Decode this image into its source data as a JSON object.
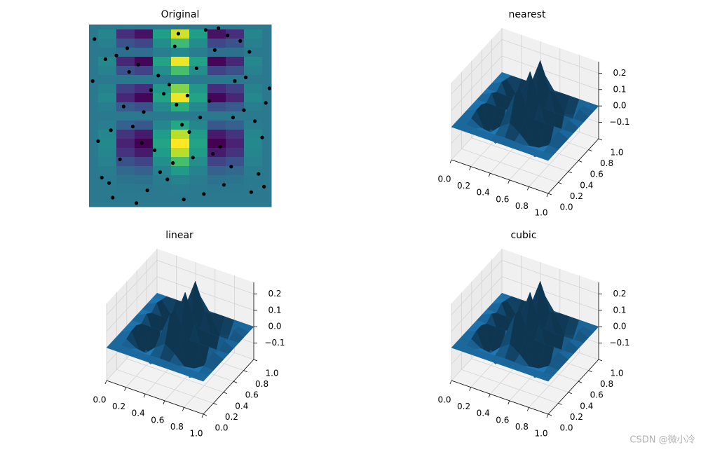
{
  "chart_data": [
    {
      "type": "heatmap",
      "title": "Original",
      "colormap": "viridis",
      "point_color": "#000000",
      "xlim": [
        0,
        1
      ],
      "ylim": [
        0,
        1
      ],
      "x": [
        0,
        0.1,
        0.2,
        0.3,
        0.4,
        0.5,
        0.6,
        0.7,
        0.8,
        0.9,
        1
      ],
      "y": [
        0,
        0.05,
        0.1,
        0.15,
        0.2,
        0.25,
        0.3,
        0.35,
        0.4,
        0.45,
        0.5,
        0.55,
        0.6,
        0.65,
        0.7,
        0.75,
        0.8,
        0.85,
        0.9,
        0.95,
        1
      ],
      "z": [
        [
          0,
          0,
          0,
          0,
          0,
          0,
          0,
          0,
          0,
          0,
          0
        ],
        [
          0,
          0,
          0,
          0,
          0,
          0,
          0,
          0,
          0,
          0,
          0
        ],
        [
          0,
          0,
          -0.002,
          -0.003,
          0.001,
          0.004,
          0.001,
          -0.003,
          -0.002,
          0,
          0
        ],
        [
          0,
          0.002,
          -0.01,
          -0.013,
          0.006,
          0.019,
          0.006,
          -0.013,
          -0.01,
          0.002,
          0
        ],
        [
          0,
          0.006,
          -0.03,
          -0.039,
          0.017,
          0.058,
          0.017,
          -0.039,
          -0.03,
          0.006,
          0
        ],
        [
          0,
          0.014,
          -0.065,
          -0.085,
          0.037,
          0.125,
          0.037,
          -0.085,
          -0.065,
          0.014,
          0
        ],
        [
          0,
          0.023,
          -0.106,
          -0.139,
          0.061,
          0.205,
          0.061,
          -0.139,
          -0.106,
          0.023,
          0
        ],
        [
          0,
          0.028,
          -0.129,
          -0.17,
          0.074,
          0.25,
          0.074,
          -0.17,
          -0.129,
          0.028,
          0
        ],
        [
          0,
          0.023,
          -0.106,
          -0.139,
          0.061,
          0.205,
          0.061,
          -0.139,
          -0.106,
          0.023,
          0
        ],
        [
          0,
          0.009,
          -0.041,
          -0.054,
          0.023,
          0.079,
          0.023,
          -0.054,
          -0.041,
          0.009,
          0
        ],
        [
          0,
          0,
          0,
          0,
          0,
          0,
          0,
          0,
          0,
          0,
          0
        ],
        [
          0,
          0.01,
          -0.049,
          -0.064,
          0.028,
          0.094,
          0.028,
          -0.064,
          -0.049,
          0.01,
          0
        ],
        [
          0,
          0.027,
          -0.125,
          -0.164,
          0.072,
          0.241,
          0.072,
          -0.164,
          -0.125,
          0.027,
          0
        ],
        [
          0,
          0.019,
          -0.089,
          -0.116,
          0.051,
          0.171,
          0.051,
          -0.116,
          -0.089,
          0.019,
          0
        ],
        [
          0,
          0,
          -0.002,
          -0.003,
          0.001,
          0.004,
          0.001,
          -0.003,
          -0.002,
          0,
          0
        ],
        [
          0,
          0.014,
          -0.065,
          -0.085,
          0.037,
          0.125,
          0.037,
          -0.085,
          -0.065,
          0.014,
          0
        ],
        [
          0,
          0.027,
          -0.125,
          -0.164,
          0.072,
          0.241,
          0.072,
          -0.164,
          -0.125,
          0.027,
          0
        ],
        [
          0,
          0.003,
          -0.015,
          -0.02,
          0.009,
          0.029,
          0.009,
          -0.02,
          -0.015,
          0.003,
          0
        ],
        [
          0,
          0.013,
          -0.061,
          -0.08,
          0.035,
          0.117,
          0.035,
          -0.08,
          -0.061,
          0.013,
          0
        ],
        [
          0,
          0.025,
          -0.115,
          -0.15,
          0.066,
          0.221,
          0.066,
          -0.15,
          -0.115,
          0.025,
          0
        ],
        [
          0,
          0,
          0,
          0,
          0,
          0,
          0,
          0,
          0,
          0,
          0
        ]
      ],
      "points": {
        "x": [
          0.03,
          0.11,
          0.19,
          0.27,
          0.36,
          0.44,
          0.52,
          0.61,
          0.69,
          0.78,
          0.86,
          0.95,
          0.07,
          0.15,
          0.24,
          0.32,
          0.41,
          0.49,
          0.57,
          0.66,
          0.74,
          0.83,
          0.91,
          0.99,
          0.05,
          0.13,
          0.22,
          0.3,
          0.39,
          0.47,
          0.55,
          0.64,
          0.72,
          0.8,
          0.89,
          0.97,
          0.09,
          0.17,
          0.26,
          0.34,
          0.43,
          0.51,
          0.59,
          0.68,
          0.76,
          0.85,
          0.93,
          0.02,
          0.12,
          0.21,
          0.29,
          0.38,
          0.46,
          0.54,
          0.63,
          0.71,
          0.79,
          0.88,
          0.96,
          0.48
        ],
        "y": [
          0.92,
          0.13,
          0.55,
          0.78,
          0.31,
          0.67,
          0.04,
          0.49,
          0.86,
          0.22,
          0.71,
          0.38,
          0.16,
          0.83,
          0.44,
          0.09,
          0.62,
          0.95,
          0.27,
          0.58,
          0.12,
          0.91,
          0.47,
          0.65,
          0.36,
          0.05,
          0.74,
          0.52,
          0.19,
          0.88,
          0.41,
          0.97,
          0.33,
          0.69,
          0.08,
          0.57,
          0.81,
          0.26,
          0.02,
          0.64,
          0.15,
          0.45,
          0.76,
          0.29,
          0.94,
          0.53,
          0.18,
          0.69,
          0.42,
          0.87,
          0.35,
          0.72,
          0.24,
          0.61,
          0.07,
          0.98,
          0.49,
          0.85,
          0.11,
          0.56
        ]
      }
    },
    {
      "type": "surface",
      "title": "nearest",
      "color": "#1f77b4",
      "xlim": [
        0,
        1
      ],
      "ylim": [
        0,
        1
      ],
      "zlim": [
        -0.2,
        0.27
      ],
      "xticks": [
        {
          "value": 0,
          "label": "0.0"
        },
        0.2,
        0.4,
        0.6,
        0.8,
        {
          "value": 1,
          "label": "1.0"
        }
      ],
      "yticks": [
        {
          "value": 0,
          "label": "0.0"
        },
        0.2,
        0.4,
        0.6,
        0.8,
        {
          "value": 1,
          "label": "1.0"
        }
      ],
      "zticks": [
        {
          "value": -0.1,
          "label": "−0.1"
        },
        {
          "value": 0,
          "label": "0.0"
        },
        0.1,
        0.2
      ],
      "x": [
        0,
        0.1,
        0.2,
        0.3,
        0.4,
        0.5,
        0.6,
        0.7,
        0.8,
        0.9,
        1
      ],
      "y": [
        0,
        0.1,
        0.2,
        0.3,
        0.4,
        0.5,
        0.6,
        0.7,
        0.8,
        0.9,
        1
      ],
      "z": [
        [
          0,
          0,
          0,
          0,
          0,
          0,
          0,
          0,
          0,
          0,
          0
        ],
        [
          0,
          0,
          -0.002,
          -0.003,
          0.001,
          0.004,
          0.001,
          -0.003,
          -0.002,
          0,
          0
        ],
        [
          0,
          0.006,
          -0.03,
          -0.039,
          0.017,
          0.058,
          0.017,
          -0.039,
          -0.03,
          0.006,
          0
        ],
        [
          0,
          0.023,
          -0.106,
          -0.139,
          0.061,
          0.205,
          0.061,
          -0.139,
          -0.106,
          0.023,
          0
        ],
        [
          0,
          0.023,
          -0.106,
          -0.139,
          0.061,
          0.205,
          0.061,
          -0.139,
          -0.106,
          0.023,
          0
        ],
        [
          0,
          0,
          0,
          0,
          0,
          0,
          0,
          0,
          0,
          0,
          0
        ],
        [
          0,
          0.027,
          -0.125,
          -0.164,
          0.072,
          0.241,
          0.072,
          -0.164,
          -0.125,
          0.027,
          0
        ],
        [
          0,
          0,
          -0.002,
          -0.003,
          0.001,
          0.004,
          0.001,
          -0.003,
          -0.002,
          0,
          0
        ],
        [
          0,
          0.027,
          -0.125,
          -0.164,
          0.072,
          0.241,
          0.072,
          -0.164,
          -0.125,
          0.027,
          0
        ],
        [
          0,
          0.013,
          -0.061,
          -0.08,
          0.035,
          0.117,
          0.035,
          -0.08,
          -0.061,
          0.013,
          0
        ],
        [
          0,
          0,
          0,
          0,
          0,
          0,
          0,
          0,
          0,
          0,
          0
        ]
      ]
    },
    {
      "type": "surface",
      "title": "linear",
      "color": "#1f77b4",
      "xlim": [
        0,
        1
      ],
      "ylim": [
        0,
        1
      ],
      "zlim": [
        -0.2,
        0.27
      ],
      "xticks": [
        {
          "value": 0,
          "label": "0.0"
        },
        0.2,
        0.4,
        0.6,
        0.8,
        {
          "value": 1,
          "label": "1.0"
        }
      ],
      "yticks": [
        {
          "value": 0,
          "label": "0.0"
        },
        0.2,
        0.4,
        0.6,
        0.8,
        {
          "value": 1,
          "label": "1.0"
        }
      ],
      "zticks": [
        {
          "value": -0.1,
          "label": "−0.1"
        },
        {
          "value": 0,
          "label": "0.0"
        },
        0.1,
        0.2
      ],
      "x": [
        0,
        0.1,
        0.2,
        0.3,
        0.4,
        0.5,
        0.6,
        0.7,
        0.8,
        0.9,
        1
      ],
      "y": [
        0,
        0.1,
        0.2,
        0.3,
        0.4,
        0.5,
        0.6,
        0.7,
        0.8,
        0.9,
        1
      ],
      "z": [
        [
          0,
          0,
          0,
          0,
          0,
          0,
          0,
          0,
          0,
          0,
          0
        ],
        [
          0,
          0,
          -0.002,
          -0.003,
          0.001,
          0.004,
          0.001,
          -0.003,
          -0.002,
          0,
          0
        ],
        [
          0,
          0.006,
          -0.03,
          -0.039,
          0.017,
          0.058,
          0.017,
          -0.039,
          -0.03,
          0.006,
          0
        ],
        [
          0,
          0.023,
          -0.106,
          -0.139,
          0.061,
          0.205,
          0.061,
          -0.139,
          -0.106,
          0.023,
          0
        ],
        [
          0,
          0.023,
          -0.106,
          -0.139,
          0.061,
          0.205,
          0.061,
          -0.139,
          -0.106,
          0.023,
          0
        ],
        [
          0,
          0,
          0,
          0,
          0,
          0,
          0,
          0,
          0,
          0,
          0
        ],
        [
          0,
          0.027,
          -0.125,
          -0.164,
          0.072,
          0.241,
          0.072,
          -0.164,
          -0.125,
          0.027,
          0
        ],
        [
          0,
          0,
          -0.002,
          -0.003,
          0.001,
          0.004,
          0.001,
          -0.003,
          -0.002,
          0,
          0
        ],
        [
          0,
          0.027,
          -0.125,
          -0.164,
          0.072,
          0.241,
          0.072,
          -0.164,
          -0.125,
          0.027,
          0
        ],
        [
          0,
          0.013,
          -0.061,
          -0.08,
          0.035,
          0.117,
          0.035,
          -0.08,
          -0.061,
          0.013,
          0
        ],
        [
          0,
          0,
          0,
          0,
          0,
          0,
          0,
          0,
          0,
          0,
          0
        ]
      ]
    },
    {
      "type": "surface",
      "title": "cubic",
      "color": "#1f77b4",
      "xlim": [
        0,
        1
      ],
      "ylim": [
        0,
        1
      ],
      "zlim": [
        -0.2,
        0.27
      ],
      "xticks": [
        {
          "value": 0,
          "label": "0.0"
        },
        0.2,
        0.4,
        0.6,
        0.8,
        {
          "value": 1,
          "label": "1.0"
        }
      ],
      "yticks": [
        {
          "value": 0,
          "label": "0.0"
        },
        0.2,
        0.4,
        0.6,
        0.8,
        {
          "value": 1,
          "label": "1.0"
        }
      ],
      "zticks": [
        {
          "value": -0.1,
          "label": "−0.1"
        },
        {
          "value": 0,
          "label": "0.0"
        },
        0.1,
        0.2
      ],
      "x": [
        0,
        0.1,
        0.2,
        0.3,
        0.4,
        0.5,
        0.6,
        0.7,
        0.8,
        0.9,
        1
      ],
      "y": [
        0,
        0.1,
        0.2,
        0.3,
        0.4,
        0.5,
        0.6,
        0.7,
        0.8,
        0.9,
        1
      ],
      "z": [
        [
          0,
          0,
          0,
          0,
          0,
          0,
          0,
          0,
          0,
          0,
          0
        ],
        [
          0,
          0,
          -0.002,
          -0.003,
          0.001,
          0.004,
          0.001,
          -0.003,
          -0.002,
          0,
          0
        ],
        [
          0,
          0.006,
          -0.03,
          -0.039,
          0.017,
          0.058,
          0.017,
          -0.039,
          -0.03,
          0.006,
          0
        ],
        [
          0,
          0.023,
          -0.106,
          -0.139,
          0.061,
          0.205,
          0.061,
          -0.139,
          -0.106,
          0.023,
          0
        ],
        [
          0,
          0.023,
          -0.106,
          -0.139,
          0.061,
          0.205,
          0.061,
          -0.139,
          -0.106,
          0.023,
          0
        ],
        [
          0,
          0,
          0,
          0,
          0,
          0,
          0,
          0,
          0,
          0,
          0
        ],
        [
          0,
          0.027,
          -0.125,
          -0.164,
          0.072,
          0.241,
          0.072,
          -0.164,
          -0.125,
          0.027,
          0
        ],
        [
          0,
          0,
          -0.002,
          -0.003,
          0.001,
          0.004,
          0.001,
          -0.003,
          -0.002,
          0,
          0
        ],
        [
          0,
          0.027,
          -0.125,
          -0.164,
          0.072,
          0.241,
          0.072,
          -0.164,
          -0.125,
          0.027,
          0
        ],
        [
          0,
          0.013,
          -0.061,
          -0.08,
          0.035,
          0.117,
          0.035,
          -0.08,
          -0.061,
          0.013,
          0
        ],
        [
          0,
          0,
          0,
          0,
          0,
          0,
          0,
          0,
          0,
          0,
          0
        ]
      ]
    }
  ],
  "watermark": "CSDN @微小冷"
}
